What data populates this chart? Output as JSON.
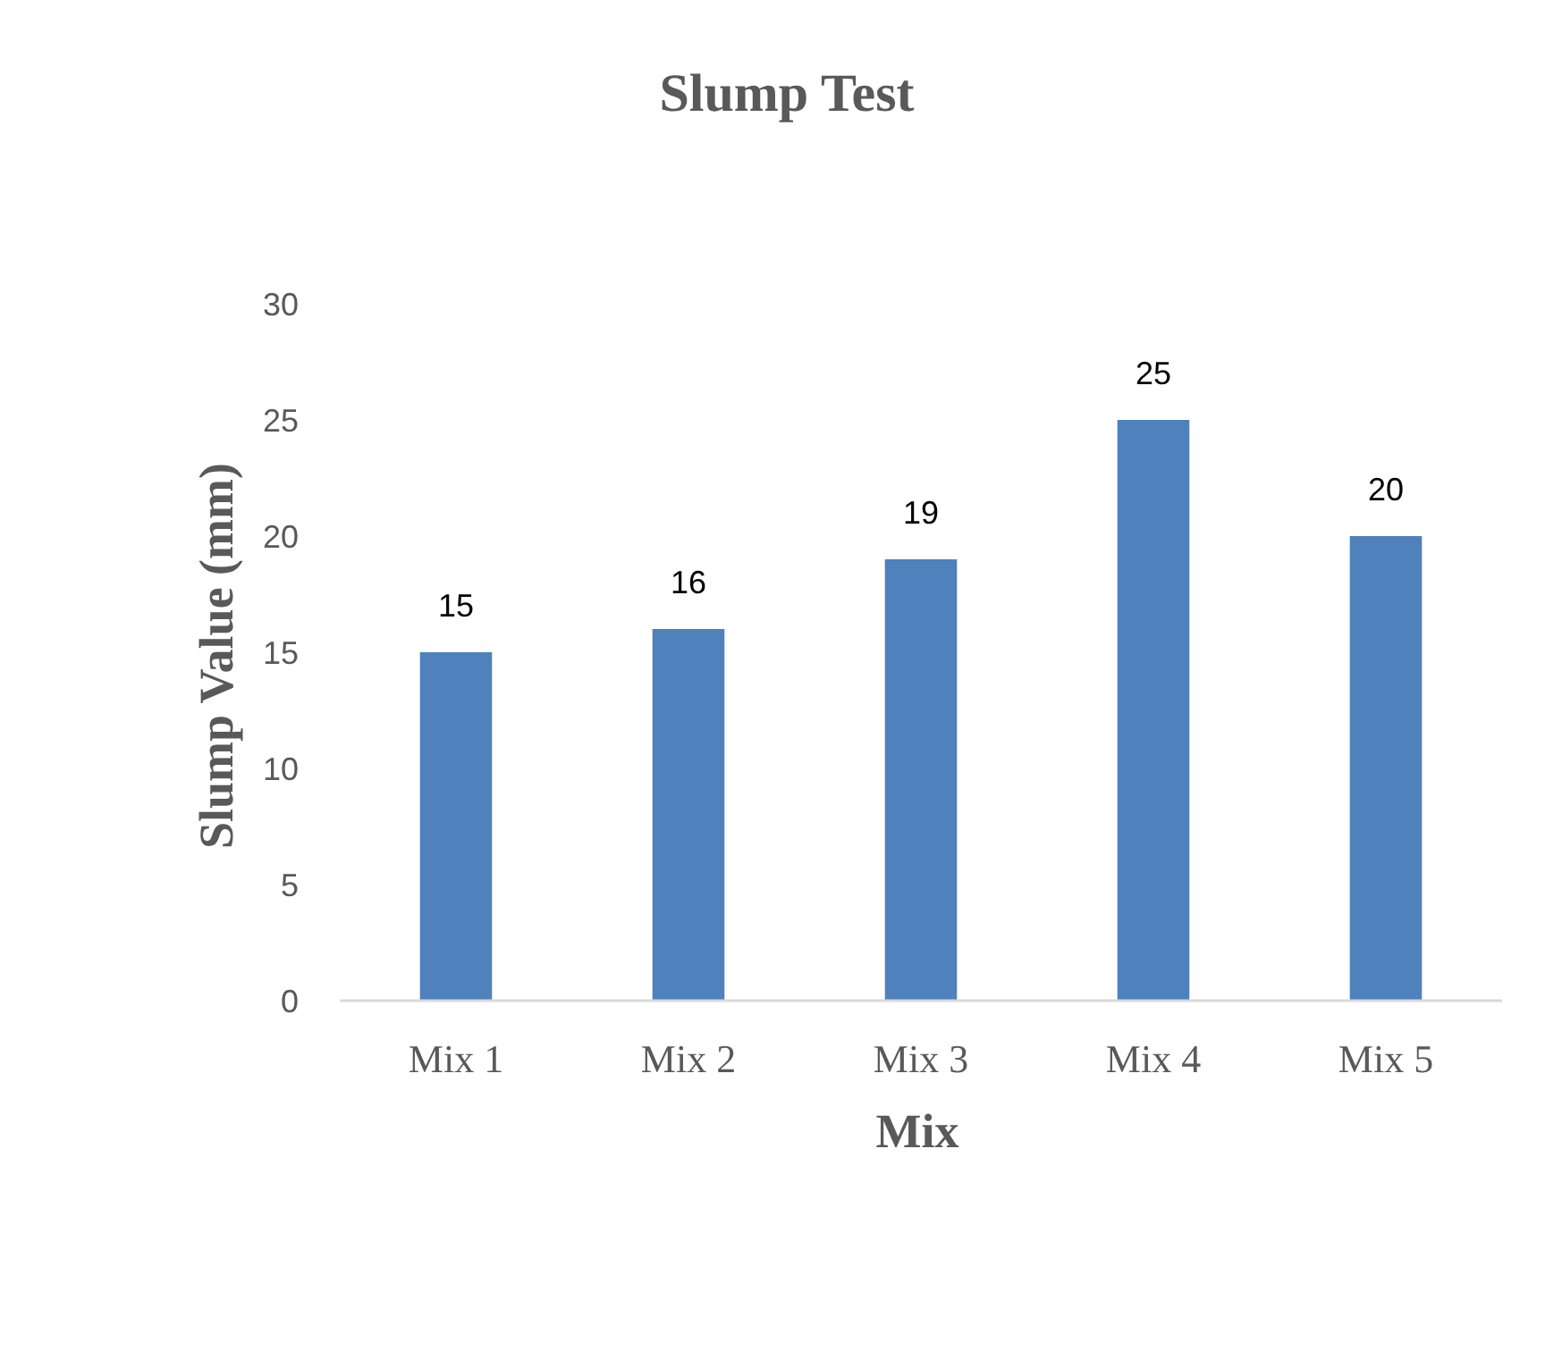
{
  "chart_data": {
    "type": "bar",
    "title": "Slump Test",
    "xlabel": "Mix",
    "ylabel": "Slump Value (mm)",
    "categories": [
      "Mix 1",
      "Mix 2",
      "Mix 3",
      "Mix 4",
      "Mix 5"
    ],
    "values": [
      15,
      16,
      19,
      25,
      20
    ],
    "color": "#4f81bd",
    "ylim": [
      0,
      30
    ],
    "yticks": [
      0,
      5,
      10,
      15,
      20,
      25,
      30
    ],
    "grid": false,
    "data_labels": true
  }
}
